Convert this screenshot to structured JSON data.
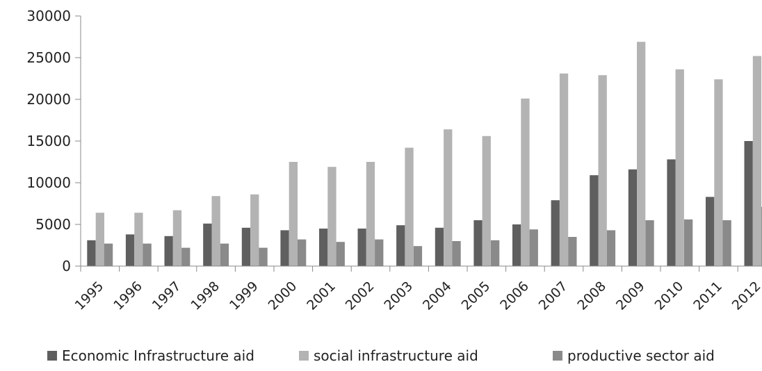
{
  "chart_data": {
    "type": "bar",
    "categories": [
      "1995",
      "1996",
      "1997",
      "1998",
      "1999",
      "2000",
      "2001",
      "2002",
      "2003",
      "2004",
      "2005",
      "2006",
      "2007",
      "2008",
      "2009",
      "2010",
      "2011",
      "2012"
    ],
    "series": [
      {
        "name": "Economic Infrastructure aid",
        "color": "#5f5f5f",
        "values": [
          3100,
          3800,
          3600,
          5100,
          4600,
          4300,
          4500,
          4500,
          4900,
          4600,
          5500,
          5000,
          7900,
          10900,
          11600,
          12800,
          8300,
          15000
        ]
      },
      {
        "name": "social infrastructure aid",
        "color": "#b3b3b3",
        "values": [
          6400,
          6400,
          6700,
          8400,
          8600,
          12500,
          11900,
          12500,
          14200,
          16400,
          15600,
          20100,
          23100,
          22900,
          26900,
          23600,
          22400,
          25200
        ]
      },
      {
        "name": "productive sector aid",
        "color": "#8a8a8a",
        "values": [
          2700,
          2700,
          2200,
          2700,
          2200,
          3200,
          2900,
          3200,
          2400,
          3000,
          3100,
          4400,
          3500,
          4300,
          5500,
          5600,
          5500,
          7100
        ]
      }
    ],
    "title": "",
    "xlabel": "",
    "ylabel": "",
    "ylim": [
      0,
      30000
    ],
    "yticks": [
      "0",
      "5000",
      "10000",
      "15000",
      "20000",
      "25000",
      "30000"
    ],
    "grid": false,
    "legend_position": "bottom"
  }
}
